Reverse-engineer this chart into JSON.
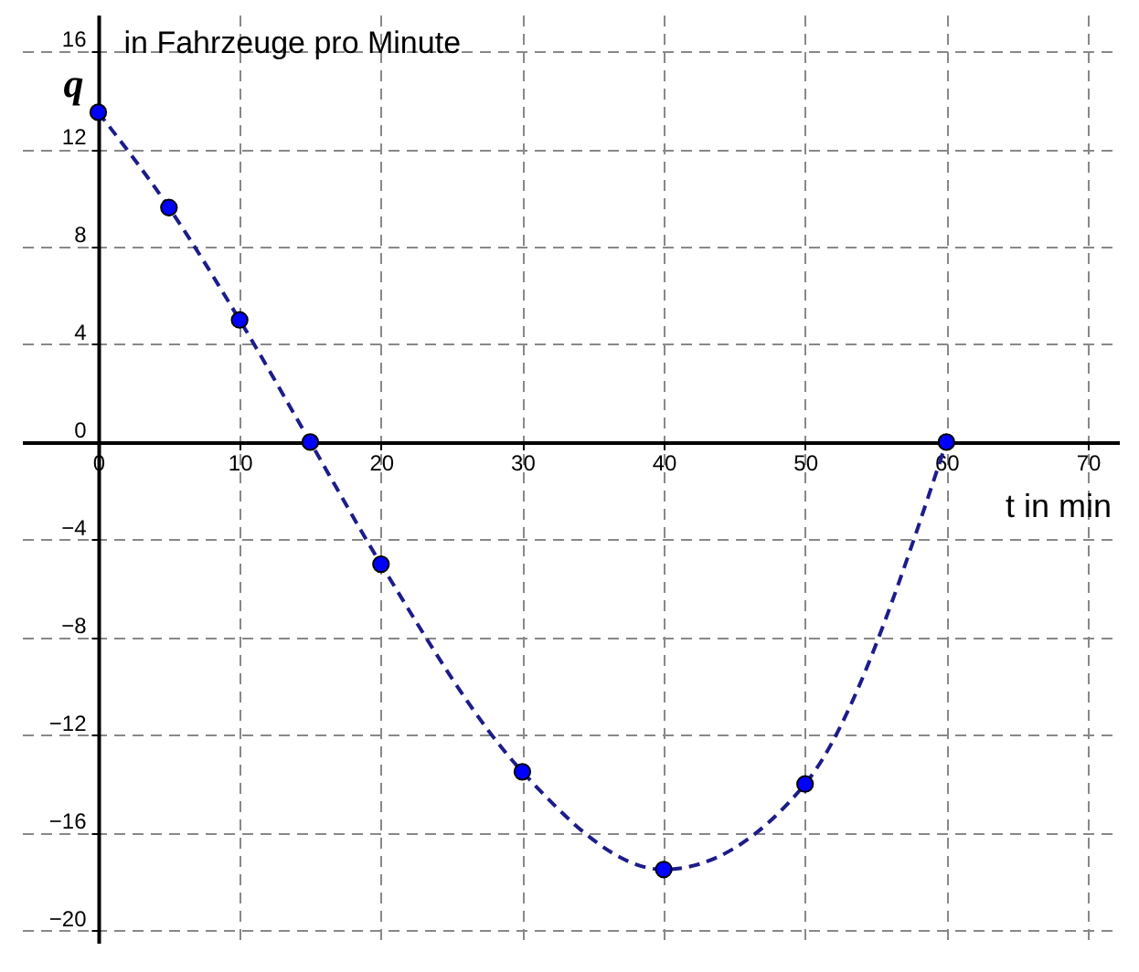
{
  "chart_data": {
    "type": "scatter",
    "xlabel": "t in min",
    "ylabel": "q",
    "annotations": [
      "in Fahrzeuge pro Minute"
    ],
    "x": [
      0,
      5,
      10,
      15,
      20,
      30,
      40,
      50,
      60
    ],
    "series": [
      {
        "type": "line",
        "color": "#1c1c8a",
        "line_style": "dashed",
        "marker": "none",
        "values": [
          13.5,
          9.6,
          5,
          0,
          -5,
          -13.5,
          -17.5,
          -14,
          0
        ]
      },
      {
        "type": "scatter",
        "color": "#0000ff",
        "marker": "circle",
        "values": [
          13.5,
          9.6,
          5,
          0,
          -5,
          -13.5,
          -17.5,
          -14,
          0
        ]
      }
    ],
    "xlim": [
      -5.4,
      72.2
    ],
    "ylim": [
      -20.5,
      17.5
    ],
    "xticks": [
      0,
      10,
      20,
      30,
      40,
      50,
      60,
      70
    ],
    "yticks": [
      -20,
      -16,
      -12,
      -8,
      -4,
      0,
      4,
      8,
      12,
      16
    ],
    "grid": true
  }
}
